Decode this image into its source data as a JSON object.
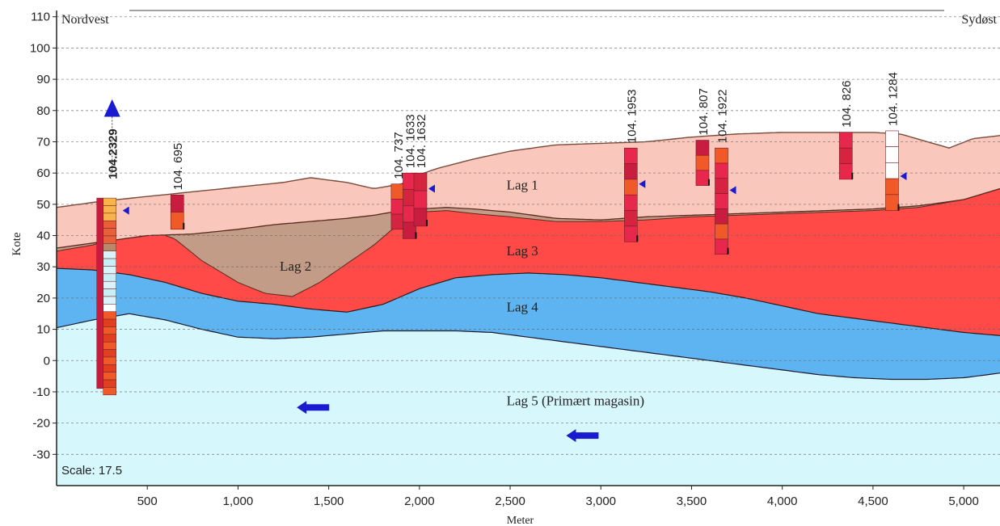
{
  "chart_data": {
    "type": "area",
    "xlabel": "Meter",
    "ylabel": "Kote",
    "xlim": [
      0,
      5200
    ],
    "ylim": [
      -40,
      112
    ],
    "x_ticks": [
      500,
      1000,
      1500,
      2000,
      2500,
      3000,
      3500,
      4000,
      4500,
      5000
    ],
    "x_tick_labels": [
      "500",
      "1,000",
      "1,500",
      "2,000",
      "2,500",
      "3,000",
      "3,500",
      "4,000",
      "4,500",
      "5,000"
    ],
    "y_ticks": [
      -30,
      -20,
      -10,
      0,
      10,
      20,
      30,
      40,
      50,
      60,
      70,
      80,
      90,
      100,
      110
    ],
    "grid": "horizontal-dashed",
    "corner_labels": {
      "left": "Nordvest",
      "right": "Sydøst"
    },
    "scale_label": "Scale: 17.5",
    "colors": {
      "lag1": "#f9c7bb",
      "lag2": "#c29c86",
      "lag3": "#ff4a48",
      "lag4": "#5eb4f1",
      "lag5": "#d6f7fc",
      "marker": "#1a1ad0"
    },
    "boundaries": {
      "terrain": {
        "x": [
          0,
          250,
          500,
          750,
          1000,
          1250,
          1400,
          1600,
          1750,
          1900,
          2000,
          2100,
          2300,
          2500,
          2750,
          3000,
          3250,
          3500,
          3750,
          4000,
          4250,
          4500,
          4650,
          4800,
          4920,
          5050,
          5200
        ],
        "y": [
          49,
          51,
          52.5,
          54,
          55.5,
          57,
          58.5,
          57,
          55,
          56.5,
          59.5,
          61.5,
          64.5,
          67,
          69,
          69.5,
          70,
          71.5,
          72.5,
          73,
          73,
          73,
          72.5,
          70,
          68,
          71,
          72
        ]
      },
      "lag1_base": {
        "x": [
          0,
          250,
          500,
          750,
          1000,
          1200,
          1400,
          1600,
          1750,
          1850,
          2000,
          2150,
          2300,
          2500,
          2750,
          3000,
          3250,
          3500,
          3750,
          4000,
          4250,
          4500,
          4750,
          5000,
          5200
        ],
        "y": [
          36,
          38,
          40,
          40.5,
          42,
          43.5,
          44.5,
          45.5,
          46.5,
          47.5,
          48.5,
          49,
          48.5,
          47.5,
          45.5,
          45,
          46,
          46.5,
          47,
          47.5,
          48,
          48.5,
          49.5,
          51.5,
          55
        ]
      },
      "lag2_base": {
        "x": [
          0,
          200,
          350,
          500,
          650,
          800,
          1000,
          1150,
          1300,
          1450,
          1600,
          1750,
          1850,
          1900,
          2000,
          2150,
          2300,
          2500,
          2750,
          3000,
          3250,
          3500,
          3750,
          4000,
          4250,
          4500,
          4750,
          5000,
          5200
        ],
        "y": [
          35,
          37,
          40,
          42,
          39,
          32,
          25,
          21.5,
          20.5,
          25,
          31,
          37,
          42,
          43,
          47.5,
          48,
          47,
          46,
          44.5,
          44.5,
          45,
          46,
          46.5,
          47,
          47.5,
          48,
          49,
          51.5,
          55
        ]
      },
      "lag3_base": {
        "x": [
          0,
          200,
          400,
          600,
          800,
          1000,
          1200,
          1400,
          1600,
          1800,
          2000,
          2200,
          2400,
          2600,
          2800,
          3000,
          3200,
          3400,
          3600,
          3800,
          4000,
          4200,
          4400,
          4600,
          4800,
          5000,
          5200
        ],
        "y": [
          29.5,
          29,
          27.5,
          25,
          21.5,
          19,
          18,
          16.5,
          15.5,
          18,
          23,
          26.5,
          27.5,
          28,
          27.5,
          26.5,
          25,
          23.5,
          22,
          20,
          17.5,
          15,
          13.5,
          12,
          10.5,
          9,
          8
        ]
      },
      "lag4_base": {
        "x": [
          0,
          200,
          400,
          600,
          800,
          1000,
          1200,
          1400,
          1600,
          1800,
          2000,
          2200,
          2400,
          2600,
          2800,
          3000,
          3200,
          3400,
          3600,
          3800,
          4000,
          4200,
          4400,
          4600,
          4800,
          5000,
          5200
        ],
        "y": [
          10.5,
          13,
          15,
          13,
          10,
          7.5,
          7,
          7.5,
          8.5,
          9.5,
          9.5,
          9.5,
          9,
          7.5,
          6,
          4.5,
          3,
          1.5,
          0,
          -1.5,
          -3,
          -4.5,
          -5.5,
          -6,
          -6,
          -5.5,
          -4
        ]
      }
    },
    "layer_labels": [
      {
        "name": "Lag 1",
        "x": 2480,
        "y": 56
      },
      {
        "name": "Lag 2",
        "x": 1230,
        "y": 30
      },
      {
        "name": "Lag 3",
        "x": 2480,
        "y": 35
      },
      {
        "name": "Lag 4",
        "x": 2480,
        "y": 17
      },
      {
        "name": "Lag 5 (Primært magasin)",
        "x": 2480,
        "y": -13
      }
    ],
    "boreholes": [
      {
        "id": "104.2329",
        "label": "104.2329",
        "x": 275,
        "top": 52,
        "bottom": -11,
        "water": 48
      },
      {
        "id": "104.695",
        "label": "104. 695",
        "x": 665,
        "top": 53,
        "bottom": 42
      },
      {
        "id": "104.737",
        "label": "104. 737",
        "x": 1880,
        "top": 56.5,
        "bottom": 42
      },
      {
        "id": "104.1633",
        "label": "104. 1633",
        "x": 1945,
        "top": 60,
        "bottom": 39,
        "water": 54.5
      },
      {
        "id": "104.1632",
        "label": "104. 1632",
        "x": 2005,
        "top": 60,
        "bottom": 43,
        "water": 55
      },
      {
        "id": "104.1953",
        "label": "104. 1953",
        "x": 3165,
        "top": 68,
        "bottom": 38,
        "water": 56.5
      },
      {
        "id": "104.807",
        "label": "104. 807",
        "x": 3560,
        "top": 70.5,
        "bottom": 56
      },
      {
        "id": "104.1922",
        "label": "104. 1922",
        "x": 3665,
        "top": 68,
        "bottom": 34,
        "water": 54.5
      },
      {
        "id": "104.826",
        "label": "104. 826",
        "x": 4350,
        "top": 73,
        "bottom": 58
      },
      {
        "id": "104.1284",
        "label": "104. 1284",
        "x": 4605,
        "top": 73.5,
        "bottom": 48,
        "water": 59
      }
    ],
    "flow_arrows": [
      {
        "x": 1440,
        "y": -15,
        "direction": "west"
      },
      {
        "x": 2925,
        "y": -24,
        "direction": "west"
      }
    ]
  }
}
